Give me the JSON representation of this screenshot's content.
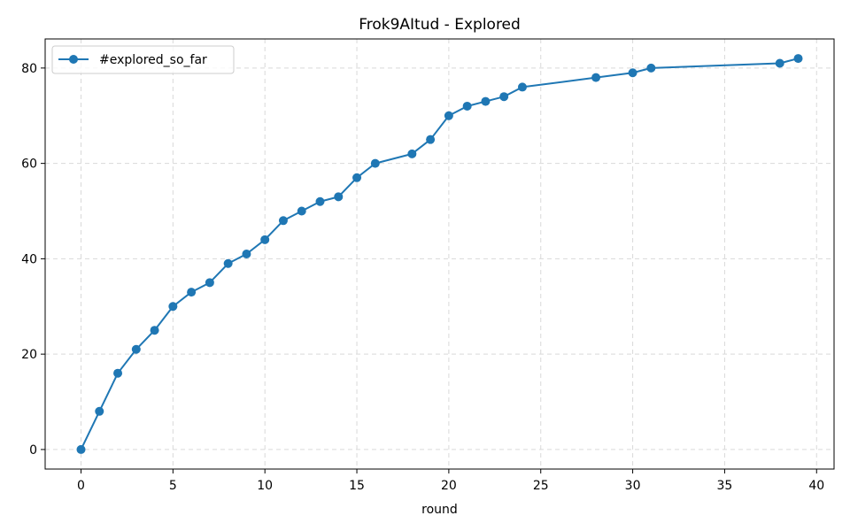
{
  "chart_data": {
    "type": "line",
    "title": "Frok9AItud - Explored",
    "xlabel": "round",
    "ylabel": "",
    "xlim": [
      -1.95,
      40.95
    ],
    "ylim": [
      -4.1,
      86.1
    ],
    "xticks": [
      0,
      5,
      10,
      15,
      20,
      25,
      30,
      35,
      40
    ],
    "yticks": [
      0,
      20,
      40,
      60,
      80
    ],
    "grid": true,
    "legend_position": "top-left",
    "series": [
      {
        "name": "#explored_so_far",
        "color": "#1f77b4",
        "marker": "circle",
        "x": [
          0,
          1,
          2,
          3,
          4,
          5,
          6,
          7,
          8,
          9,
          10,
          11,
          12,
          13,
          14,
          15,
          16,
          18,
          19,
          20,
          21,
          22,
          23,
          24,
          28,
          30,
          31,
          38,
          39
        ],
        "y": [
          0,
          8,
          16,
          21,
          25,
          30,
          33,
          35,
          39,
          41,
          44,
          48,
          50,
          52,
          53,
          57,
          60,
          62,
          65,
          70,
          72,
          73,
          74,
          76,
          78,
          79,
          80,
          81,
          82
        ]
      }
    ]
  }
}
